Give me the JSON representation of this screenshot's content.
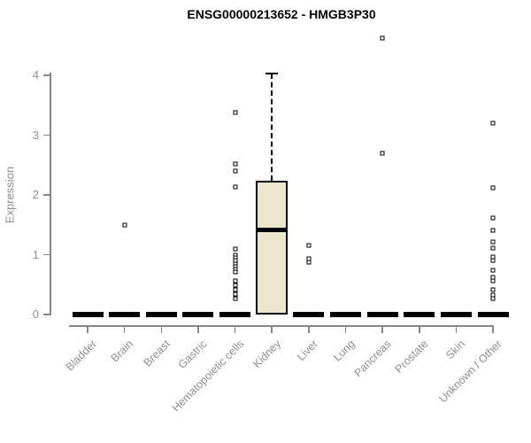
{
  "title": "ENSG00000213652 - HMGB3P30",
  "chart_data": {
    "type": "boxplot",
    "title": "ENSG00000213652 - HMGB3P30",
    "xlabel": "",
    "ylabel": "Expression",
    "ylim": [
      0,
      4
    ],
    "yticks": [
      "0",
      "1",
      "2",
      "3",
      "4"
    ],
    "grid": false,
    "legend": false,
    "categories": [
      "Bladder",
      "Brain",
      "Breast",
      "Gastric",
      "Hematopoietic cells",
      "Kidney",
      "Liver",
      "Lung",
      "Pancreas",
      "Prostate",
      "Skin",
      "Unknown / Other"
    ],
    "boxes": [
      {
        "category": "Bladder",
        "q1": 0,
        "median": 0,
        "q3": 0,
        "whisker_low": 0,
        "whisker_high": 0,
        "outliers": []
      },
      {
        "category": "Brain",
        "q1": 0,
        "median": 0,
        "q3": 0,
        "whisker_low": 0,
        "whisker_high": 0,
        "outliers": [
          1.5
        ]
      },
      {
        "category": "Breast",
        "q1": 0,
        "median": 0,
        "q3": 0,
        "whisker_low": 0,
        "whisker_high": 0,
        "outliers": []
      },
      {
        "category": "Gastric",
        "q1": 0,
        "median": 0,
        "q3": 0,
        "whisker_low": 0,
        "whisker_high": 0,
        "outliers": []
      },
      {
        "category": "Hematopoietic cells",
        "q1": 0,
        "median": 0,
        "q3": 0,
        "whisker_low": 0,
        "whisker_high": 0,
        "outliers": [
          3.38,
          2.52,
          2.4,
          2.14,
          1.1,
          0.99,
          0.95,
          0.9,
          0.85,
          0.8,
          0.75,
          0.71,
          0.56,
          0.49,
          0.42,
          0.34,
          0.27
        ]
      },
      {
        "category": "Kidney",
        "q1": 0,
        "median": 1.42,
        "q3": 2.24,
        "whisker_low": 0,
        "whisker_high": 4.03,
        "outliers": []
      },
      {
        "category": "Liver",
        "q1": 0,
        "median": 0,
        "q3": 0,
        "whisker_low": 0,
        "whisker_high": 0,
        "outliers": [
          1.16,
          0.93,
          0.88
        ]
      },
      {
        "category": "Lung",
        "q1": 0,
        "median": 0,
        "q3": 0,
        "whisker_low": 0,
        "whisker_high": 0,
        "outliers": []
      },
      {
        "category": "Pancreas",
        "q1": 0,
        "median": 0,
        "q3": 0,
        "whisker_low": 0,
        "whisker_high": 0,
        "outliers": [
          4.62,
          2.7
        ]
      },
      {
        "category": "Prostate",
        "q1": 0,
        "median": 0,
        "q3": 0,
        "whisker_low": 0,
        "whisker_high": 0,
        "outliers": []
      },
      {
        "category": "Skin",
        "q1": 0,
        "median": 0,
        "q3": 0,
        "whisker_low": 0,
        "whisker_high": 0,
        "outliers": []
      },
      {
        "category": "Unknown / Other",
        "q1": 0,
        "median": 0,
        "q3": 0,
        "whisker_low": 0,
        "whisker_high": 0,
        "outliers": [
          3.2,
          2.12,
          1.61,
          1.41,
          1.22,
          1.11,
          0.96,
          0.9,
          0.74,
          0.62,
          0.56,
          0.42,
          0.33,
          0.26
        ]
      }
    ],
    "colors": {
      "box_fill": "#ece7ca",
      "box_border": "#000000",
      "median": "#000000",
      "outlier_fill": "#ffffff",
      "axis": "#868686",
      "axis_text": "#8f8f8f",
      "title_text": "#000000",
      "background": "#ffffff"
    }
  }
}
